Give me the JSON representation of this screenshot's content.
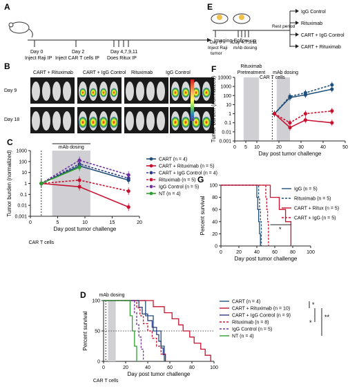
{
  "panels": {
    "A": {
      "letter": "A",
      "events": [
        {
          "day": "Day 0",
          "desc": "Inject Raji IP"
        },
        {
          "day": "Day 2",
          "desc": "Inject CAR T cells IP"
        },
        {
          "day": "Day 4,7,9,11",
          "desc": "Does Ritux IP"
        }
      ],
      "followup": "Imaging Follow-up"
    },
    "B": {
      "letter": "B",
      "groups": [
        "CART + Rituximab",
        "CART + IgG Control",
        "Rituximab",
        "IgG Control"
      ],
      "rows": [
        "Day 9",
        "Day 18"
      ]
    },
    "E": {
      "letter": "E",
      "day0": "Day 0",
      "day0_desc1": "Inject Raji",
      "day0_desc2": "tumor",
      "day4": "Day 4,7,9,11",
      "day4_desc": "mAb dosing",
      "rest": "Rest period",
      "arms": [
        "IgG Control",
        "Rituximab",
        "CART + IgG Control",
        "CART + Rituximab"
      ]
    }
  },
  "chart_data": [
    {
      "id": "C",
      "type": "line",
      "letter": "C",
      "xlabel": "Day post tumor challenge",
      "ylabel": "Tumor burden (normalized)",
      "ylog": true,
      "ylim": [
        0.001,
        1000
      ],
      "xlim": [
        0,
        20
      ],
      "xticks": [
        0,
        5,
        10,
        15,
        20
      ],
      "yticks": [
        "0.001",
        "0.01",
        "0.1",
        "1",
        "10",
        "100",
        "1000"
      ],
      "shade_label": "mAb dosing",
      "shade": [
        4,
        11
      ],
      "car_marker": "CAR T cells",
      "series": [
        {
          "name": "CART (n = 4)",
          "color": "#1f4e79",
          "dash": false,
          "x": [
            2,
            9,
            18
          ],
          "y": [
            1,
            40,
            2
          ]
        },
        {
          "name": "CART + Rituximab (n = 5)",
          "color": "#c8102e",
          "dash": false,
          "x": [
            2,
            9,
            18
          ],
          "y": [
            1,
            0.5,
            0.007
          ]
        },
        {
          "name": "CART + IgG Control (n = 4)",
          "color": "#2e3a87",
          "dash": true,
          "x": [
            2,
            9,
            18
          ],
          "y": [
            1,
            60,
            3
          ]
        },
        {
          "name": "Rituximab (n = 5)",
          "color": "#c8102e",
          "dash": true,
          "x": [
            2,
            9,
            18
          ],
          "y": [
            1,
            2,
            0.2
          ]
        },
        {
          "name": "IgG Control (n = 5)",
          "color": "#7030a0",
          "dash": true,
          "x": [
            2,
            9,
            18
          ],
          "y": [
            1,
            130,
            6
          ]
        },
        {
          "name": "NT (n = 4)",
          "color": "#2ca02c",
          "dash": false,
          "x": [
            2,
            9
          ],
          "y": [
            1,
            30
          ]
        }
      ]
    },
    {
      "id": "F",
      "type": "line",
      "letter": "F",
      "xlabel": "Day post tumor challenge",
      "ylabel": "Tumor burden (normalized)",
      "ylog": true,
      "ylim": [
        0.001,
        10000
      ],
      "xlim": [
        0,
        50
      ],
      "xticks": [
        0,
        5,
        10,
        20,
        30,
        40,
        50
      ],
      "yticks": [
        "0.001",
        "0.01",
        "0.1",
        "1",
        "10",
        "100",
        "1000",
        "10000"
      ],
      "shade1_label1": "Rituximab",
      "shade1_label2": "Pretreatment",
      "shade1": [
        4,
        11
      ],
      "shade2_label": "mAb dosing",
      "shade2": [
        19,
        25
      ],
      "car_marker": "CAR T cells",
      "series": [
        {
          "color": "#1f4e79",
          "dash": false,
          "x": [
            18,
            25,
            32,
            44
          ],
          "y": [
            1,
            60,
            120,
            500
          ]
        },
        {
          "color": "#1f4e79",
          "dash": true,
          "x": [
            18,
            25,
            32,
            44
          ],
          "y": [
            1,
            80,
            200,
            1500
          ]
        },
        {
          "color": "#c8102e",
          "dash": false,
          "x": [
            18,
            25,
            32,
            44
          ],
          "y": [
            1,
            0.03,
            0.2,
            0.1
          ]
        },
        {
          "color": "#c8102e",
          "dash": true,
          "x": [
            18,
            25,
            32,
            44
          ],
          "y": [
            1,
            0.1,
            1,
            2
          ]
        }
      ]
    },
    {
      "id": "D",
      "type": "line",
      "letter": "D",
      "xlabel": "Day post tumor challenge",
      "ylabel": "Percent survival",
      "ylim": [
        0,
        100
      ],
      "xlim": [
        0,
        100
      ],
      "xticks": [
        0,
        20,
        40,
        60,
        80,
        100
      ],
      "yticks": [
        "0",
        "50",
        "100"
      ],
      "shade_label": "mAb dosing",
      "car_marker": "CAR T cells",
      "series": [
        {
          "name": "CART (n = 4)",
          "color": "#1f4e79",
          "dash": false
        },
        {
          "name": "CART + Rituximab (n = 10)",
          "color": "#c8102e",
          "dash": false
        },
        {
          "name": "CART + IgG Control (n = 9)",
          "color": "#2e3a87",
          "dash": false
        },
        {
          "name": "Rituximab (n = 8)",
          "color": "#c8102e",
          "dash": true
        },
        {
          "name": "IgG Control (n = 5)",
          "color": "#7030a0",
          "dash": true
        },
        {
          "name": "NT (n = 4)",
          "color": "#2ca02c",
          "dash": false
        }
      ],
      "sig": [
        "*",
        "*",
        "**"
      ]
    },
    {
      "id": "G",
      "type": "line",
      "letter": "G",
      "xlabel": "Day post tumor challenge",
      "ylabel": "Percent survival",
      "ylim": [
        0,
        100
      ],
      "xlim": [
        0,
        100
      ],
      "xticks": [
        0,
        20,
        40,
        60,
        80,
        100
      ],
      "yticks": [
        "0",
        "20",
        "40",
        "60",
        "80",
        "100"
      ],
      "series": [
        {
          "name": "IgG (n = 5)",
          "color": "#1f4e79",
          "dash": false
        },
        {
          "name": "Rituximab (n = 5)",
          "color": "#1f4e79",
          "dash": true
        },
        {
          "name": "CART + Ritux (n = 5)",
          "color": "#c8102e",
          "dash": false
        },
        {
          "name": "CART + IgG (n = 5)",
          "color": "#c8102e",
          "dash": true
        }
      ],
      "sig": [
        "*"
      ]
    }
  ]
}
